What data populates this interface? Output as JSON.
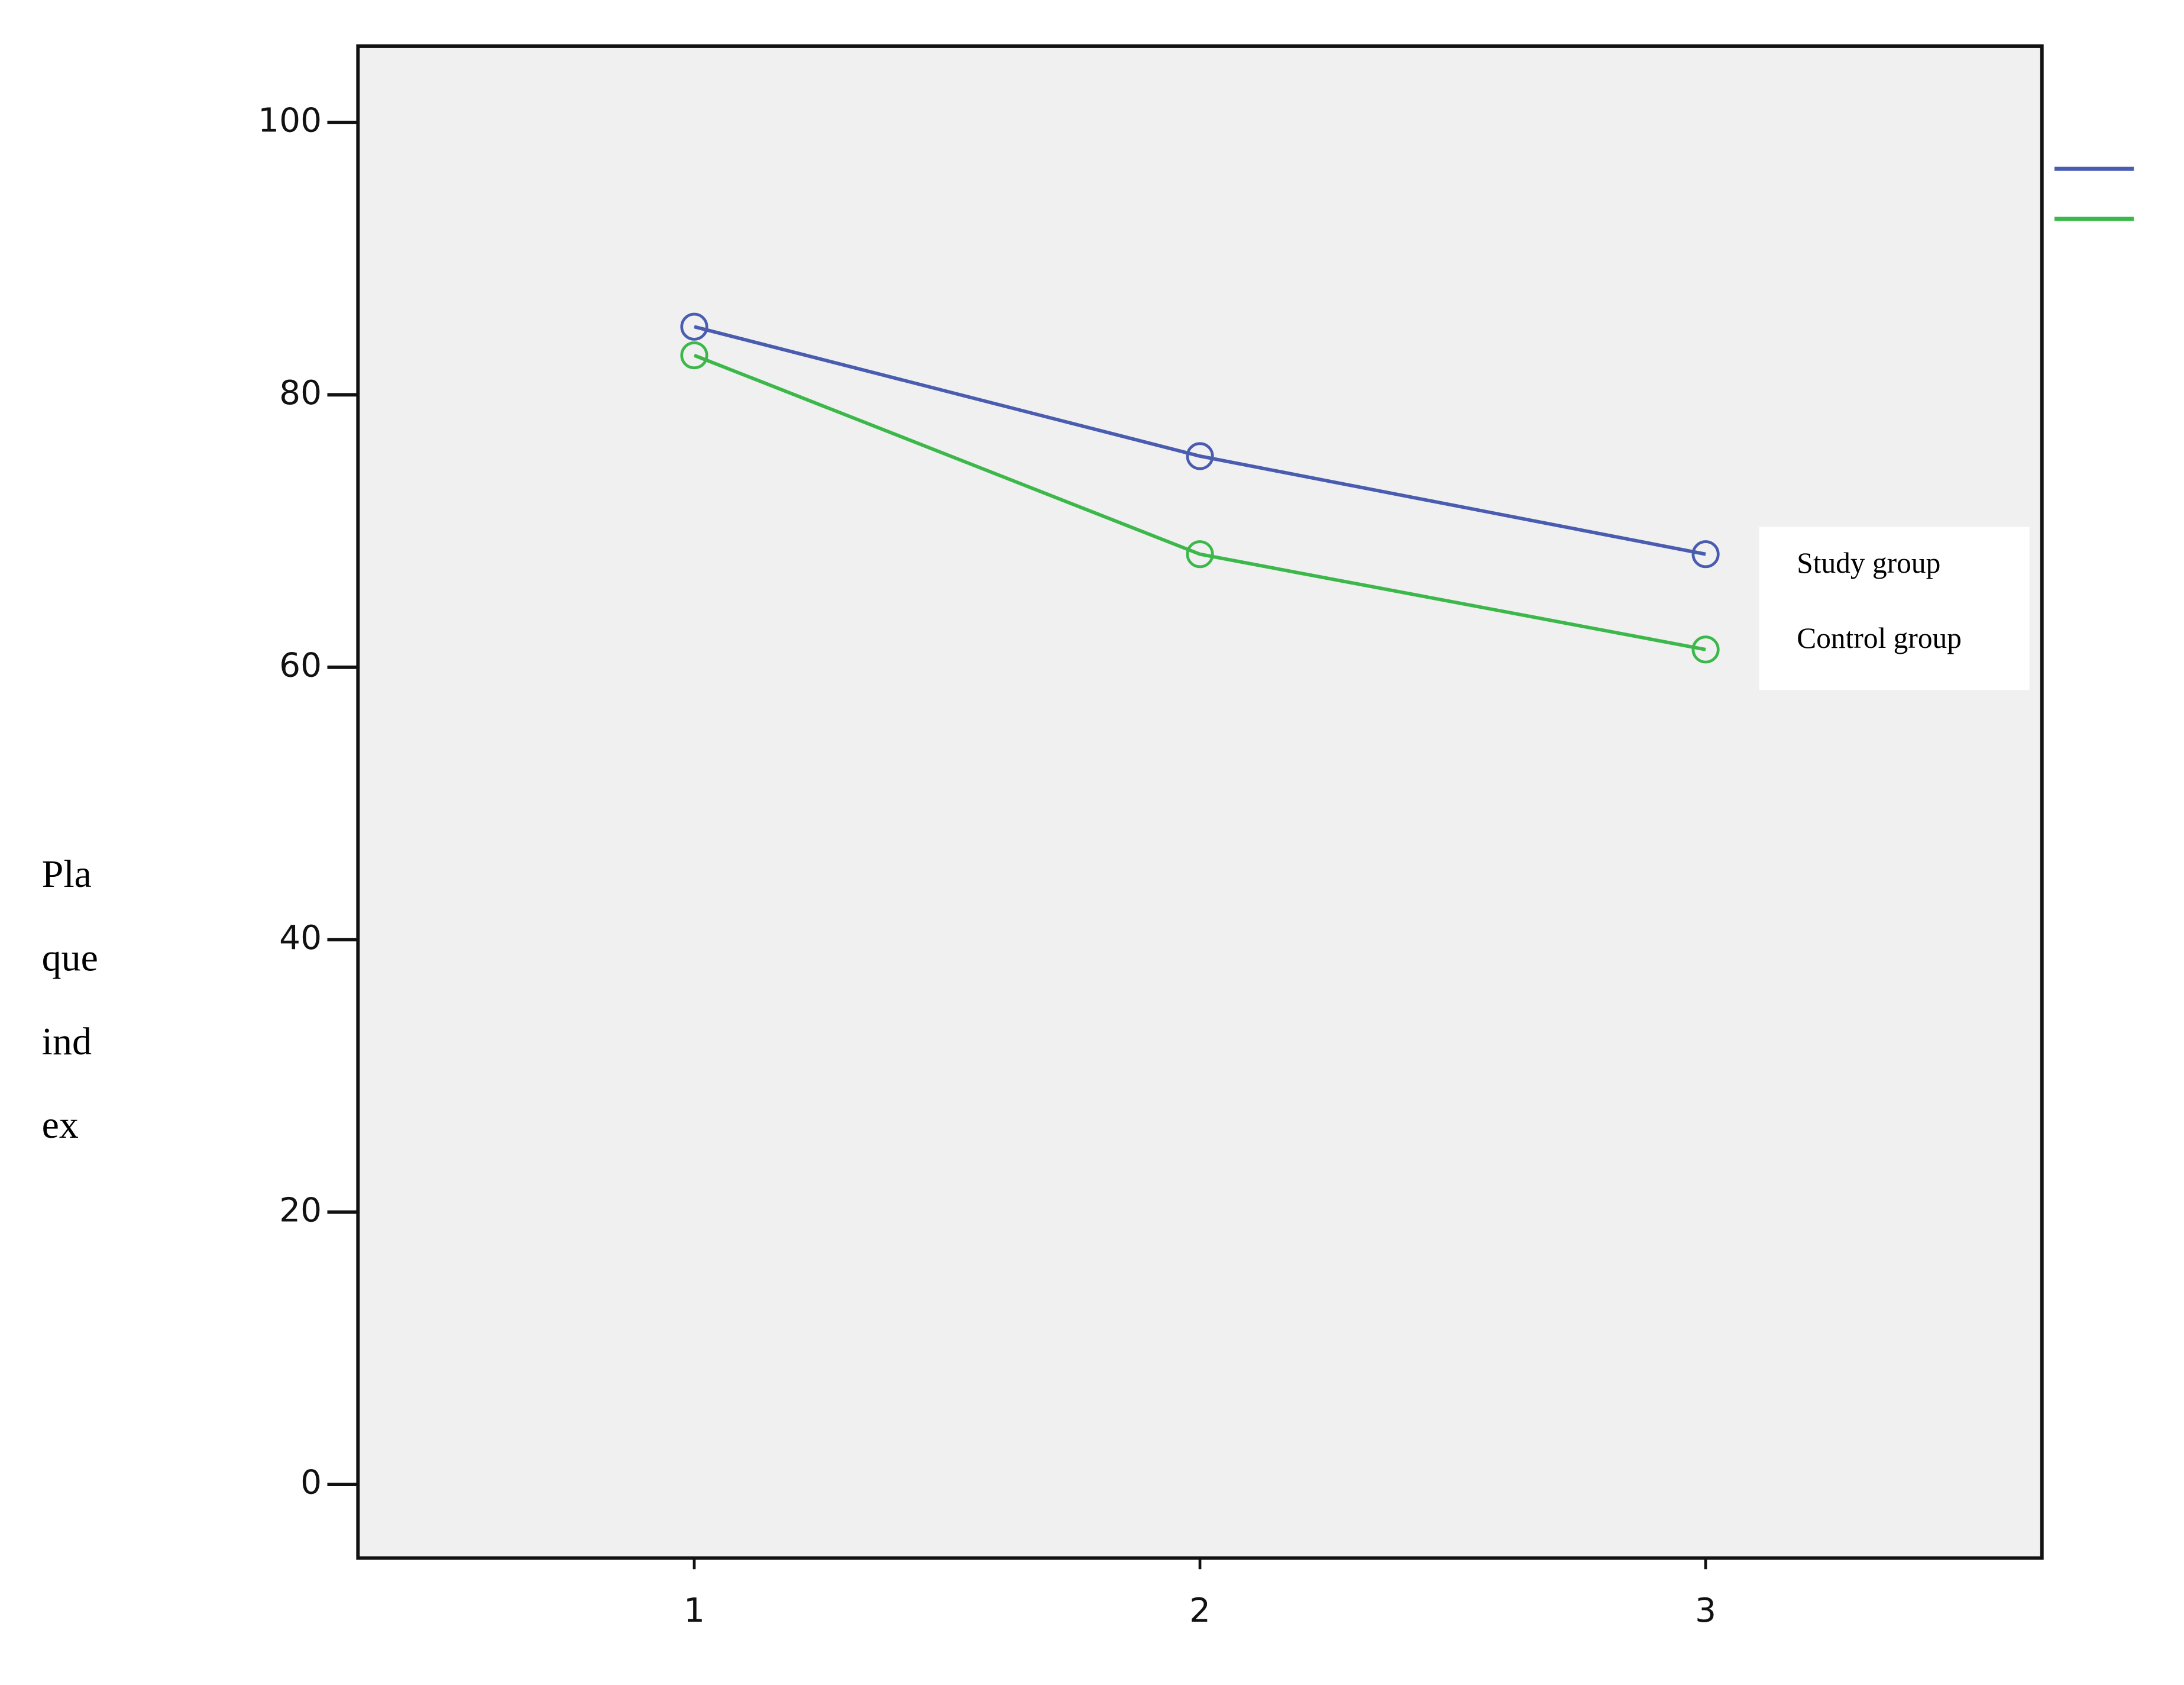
{
  "chart_data": {
    "type": "line",
    "ylabel_lines": [
      "Pla",
      "que",
      "ind",
      "ex"
    ],
    "x": [
      1,
      2,
      3
    ],
    "xlim": [
      0.335,
      3.665
    ],
    "xticks": [
      1,
      2,
      3
    ],
    "ylim": [
      -5.4,
      105.6
    ],
    "yticks": [
      0,
      20,
      40,
      60,
      80,
      100
    ],
    "series": [
      {
        "name": "Study group",
        "color": "#4a5cb0",
        "values": [
          85,
          75.5,
          68.3
        ]
      },
      {
        "name": "Control group",
        "color": "#3cb84a",
        "values": [
          82.9,
          68.3,
          61.3
        ]
      }
    ],
    "marker": "open-circle",
    "background": "#f0f0f0"
  }
}
